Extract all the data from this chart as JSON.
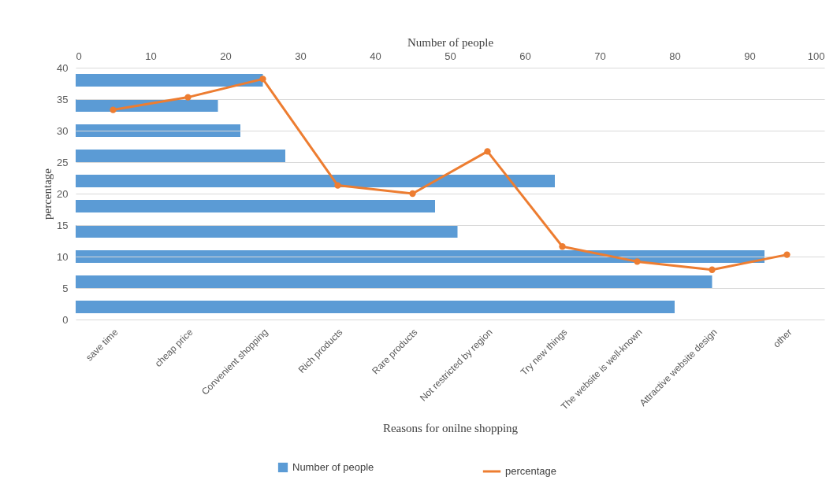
{
  "chart_data": [
    {
      "type": "bar",
      "orientation": "horizontal",
      "xlabel": "Number of people",
      "categories": [
        null,
        null,
        null,
        null,
        null,
        null,
        null,
        null,
        null,
        null
      ],
      "xlim": [
        0,
        100
      ],
      "xticks": [
        0,
        10,
        20,
        30,
        40,
        50,
        60,
        70,
        80,
        90,
        100
      ],
      "legend": "bottom",
      "tick_labels": "x",
      "series": [
        {
          "name": "Number of people",
          "color": "#5b9bd5",
          "values": [
            25,
            19,
            22,
            28,
            64,
            48,
            51,
            92,
            85,
            80
          ]
        }
      ]
    },
    {
      "type": "line",
      "xlabel": "Reasons for onilne shopping",
      "ylabel": "percentage",
      "categories": [
        "save time",
        "cheap price",
        "Convenient shopping",
        "Rich products",
        "Rare products",
        "Not restricted by region",
        "Try new things",
        "The website is well-known",
        "Attractive website design",
        "other"
      ],
      "ylim": [
        0,
        40
      ],
      "yticks": [
        0,
        5,
        10,
        15,
        20,
        25,
        30,
        35,
        40
      ],
      "grid": "y",
      "legend": "bottom",
      "marker": "circle",
      "series": [
        {
          "name": "percentage",
          "color": "#ed7d31",
          "values": [
            33.3,
            35.3,
            38.2,
            21.3,
            20,
            26.7,
            11.6,
            9.2,
            7.9,
            10.3
          ]
        }
      ]
    }
  ]
}
